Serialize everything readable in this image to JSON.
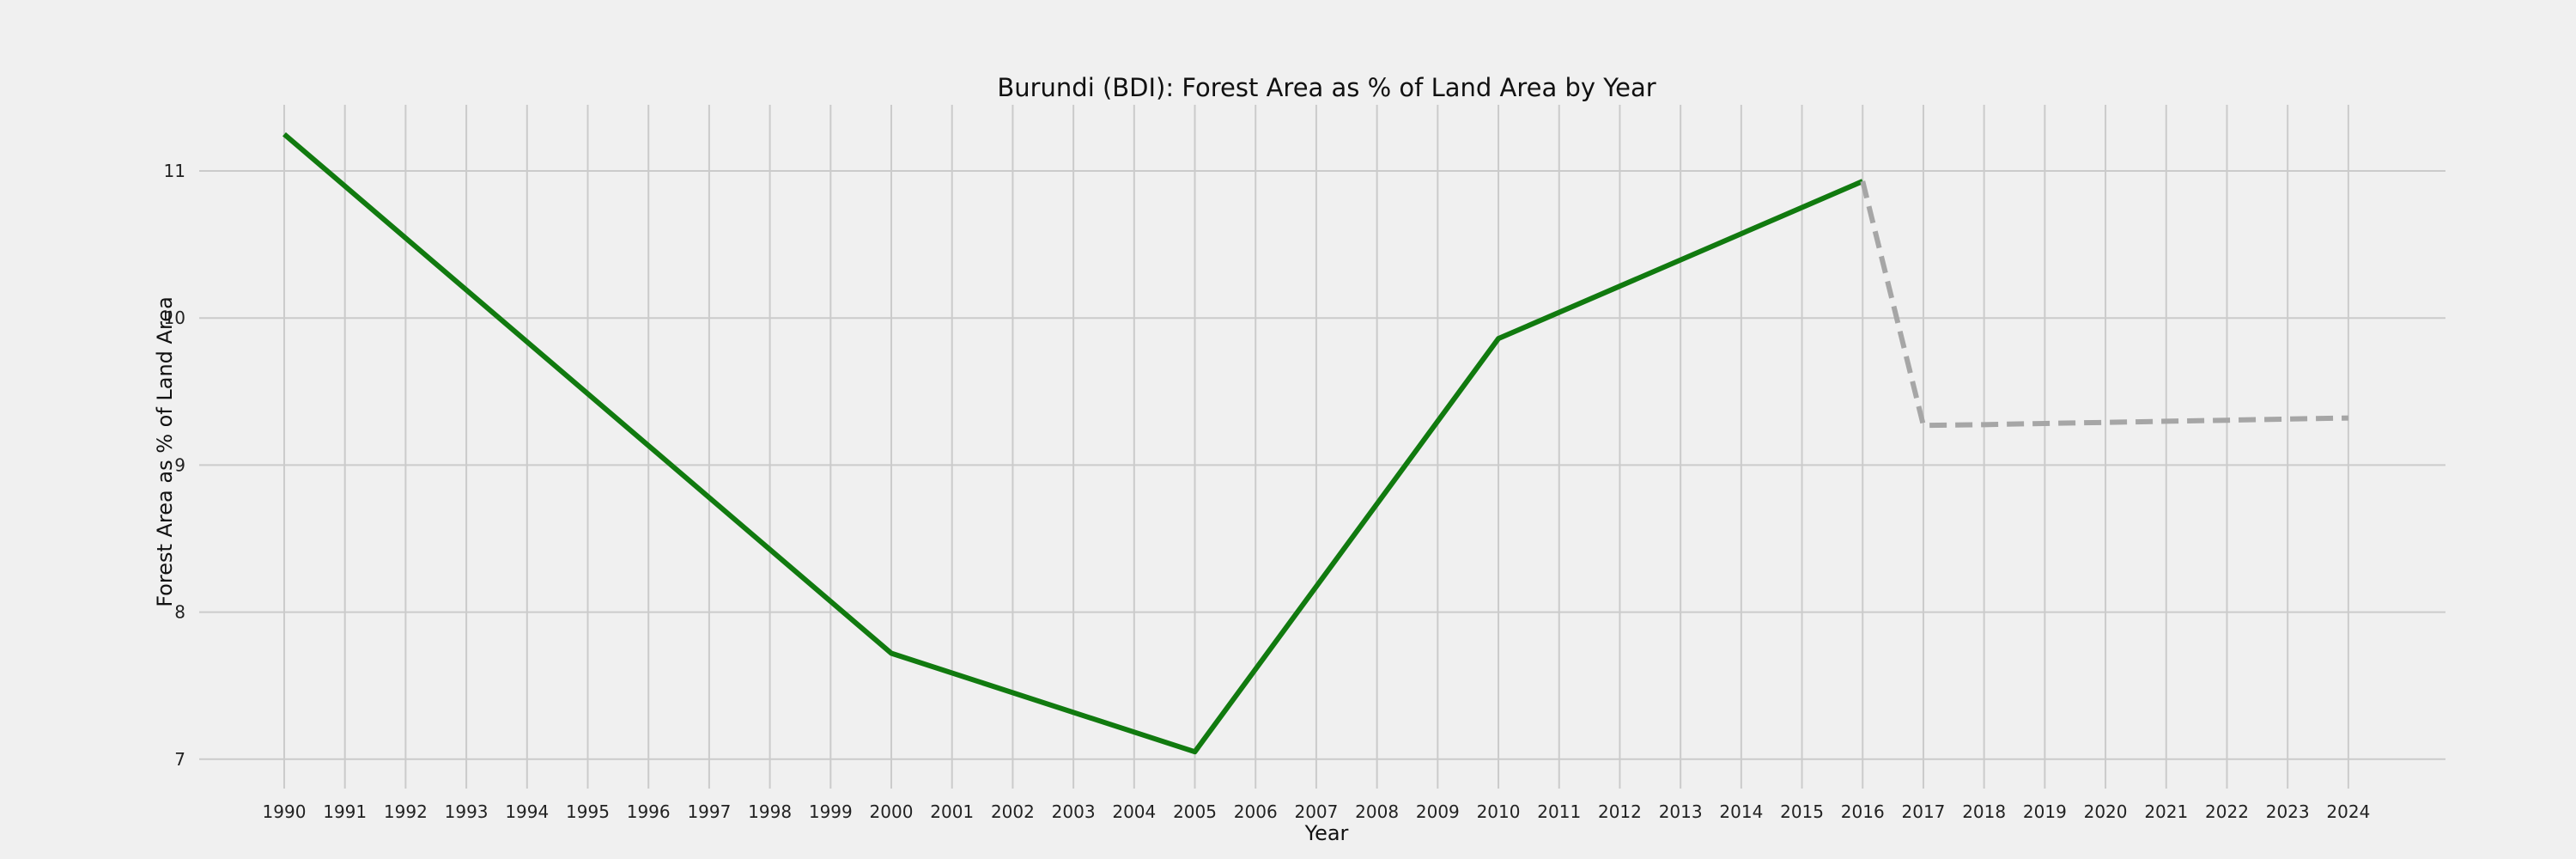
{
  "chart_data": {
    "type": "line",
    "title": "Burundi (BDI): Forest Area as % of Land Area by Year",
    "xlabel": "Year",
    "ylabel": "Forest Area as % of Land Area",
    "xlim": [
      1988.6,
      2025.6
    ],
    "ylim": [
      6.8,
      11.45
    ],
    "x_ticks": [
      1990,
      1991,
      1992,
      1993,
      1994,
      1995,
      1996,
      1997,
      1998,
      1999,
      2000,
      2001,
      2002,
      2003,
      2004,
      2005,
      2006,
      2007,
      2008,
      2009,
      2010,
      2011,
      2012,
      2013,
      2014,
      2015,
      2016,
      2017,
      2018,
      2019,
      2020,
      2021,
      2022,
      2023,
      2024
    ],
    "y_ticks": [
      7,
      8,
      9,
      10,
      11
    ],
    "grid": true,
    "series": [
      {
        "style": "solid",
        "color": "#117a0f",
        "points": [
          {
            "x": 1990,
            "y": 11.25
          },
          {
            "x": 2000,
            "y": 7.72
          },
          {
            "x": 2005,
            "y": 7.05
          },
          {
            "x": 2010,
            "y": 9.86
          },
          {
            "x": 2016,
            "y": 10.93
          }
        ]
      },
      {
        "style": "dashed",
        "color": "#a6a6a6",
        "points": [
          {
            "x": 2016,
            "y": 10.93
          },
          {
            "x": 2017,
            "y": 9.27
          },
          {
            "x": 2018,
            "y": 9.275
          },
          {
            "x": 2019,
            "y": 9.283
          },
          {
            "x": 2020,
            "y": 9.29
          },
          {
            "x": 2021,
            "y": 9.298
          },
          {
            "x": 2022,
            "y": 9.305
          },
          {
            "x": 2023,
            "y": 9.313
          },
          {
            "x": 2024,
            "y": 9.32
          }
        ]
      }
    ]
  }
}
